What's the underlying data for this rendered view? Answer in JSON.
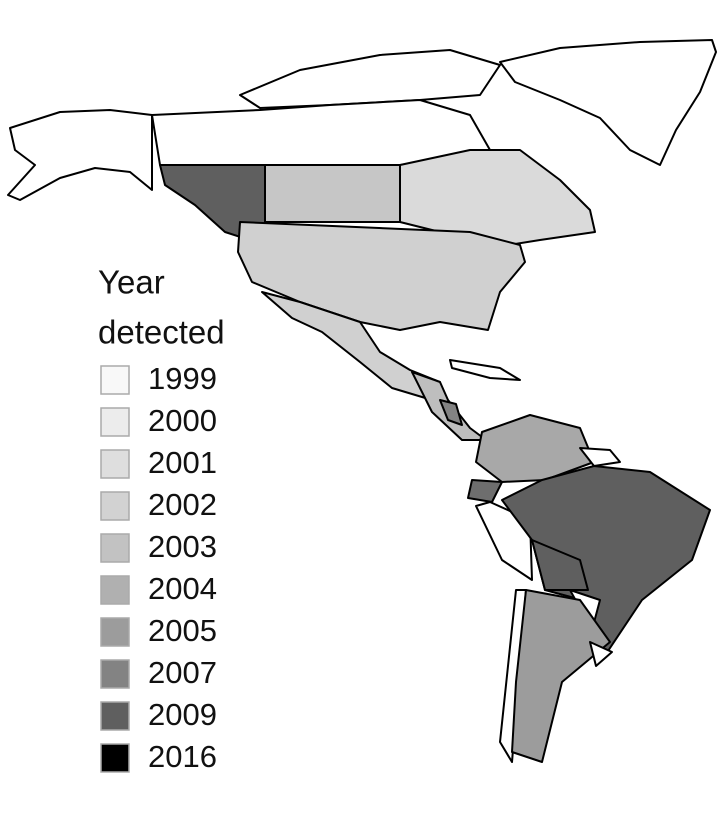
{
  "legend": {
    "title": [
      "Year",
      "detected"
    ],
    "items": [
      {
        "label": "1999",
        "color": "#f8f8f8"
      },
      {
        "label": "2000",
        "color": "#ececec"
      },
      {
        "label": "2001",
        "color": "#dedede"
      },
      {
        "label": "2002",
        "color": "#d2d2d2"
      },
      {
        "label": "2003",
        "color": "#c2c2c2"
      },
      {
        "label": "2004",
        "color": "#b0b0b0"
      },
      {
        "label": "2005",
        "color": "#9c9c9c"
      },
      {
        "label": "2007",
        "color": "#838383"
      },
      {
        "label": "2009",
        "color": "#5f5f5f"
      },
      {
        "label": "2016",
        "color": "#000000"
      }
    ]
  }
}
